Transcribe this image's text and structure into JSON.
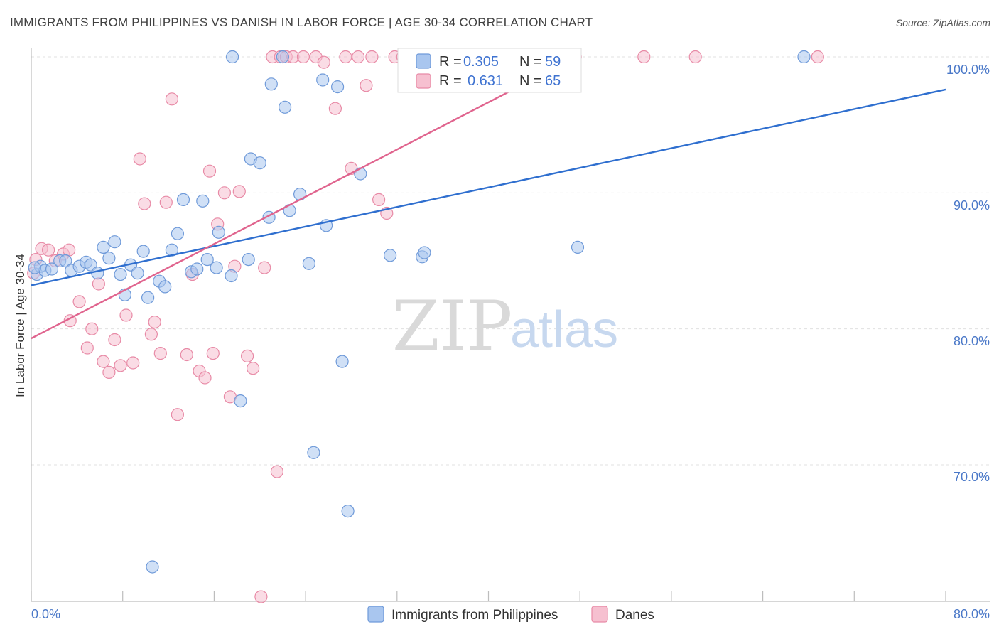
{
  "header": {
    "title": "IMMIGRANTS FROM PHILIPPINES VS DANISH IN LABOR FORCE | AGE 30-34 CORRELATION CHART",
    "source": "Source: ZipAtlas.com"
  },
  "watermark": {
    "zip": "ZIP",
    "atlas": "atlas"
  },
  "colors": {
    "blue_fill": "#a9c6ef",
    "blue_stroke": "#6f9ad9",
    "blue_line": "#2f6fcf",
    "pink_fill": "#f6c0d0",
    "pink_stroke": "#e88aa6",
    "pink_line": "#e0648e",
    "grid": "#e0e0e0",
    "tick_text": "#4a78c8"
  },
  "legend": {
    "r_label": "R =",
    "n_label": "N =",
    "series": [
      {
        "r": "0.305",
        "n": "59"
      },
      {
        "r": "0.631",
        "n": "65"
      }
    ]
  },
  "chart_data": {
    "type": "scatter",
    "title": "IMMIGRANTS FROM PHILIPPINES VS DANISH IN LABOR FORCE | AGE 30-34 CORRELATION CHART",
    "xlabel": "",
    "ylabel": "In Labor Force | Age 30-34",
    "xlim": [
      0,
      80
    ],
    "ylim": [
      60,
      101.5
    ],
    "x_tick_labels": [
      "0.0%",
      "80.0%"
    ],
    "y_ticks": [
      70,
      80,
      90,
      100
    ],
    "y_tick_labels": [
      "70.0%",
      "80.0%",
      "90.0%",
      "100.0%"
    ],
    "grid": true,
    "series": [
      {
        "name": "Immigrants from Philippines",
        "color": "blue",
        "trend": {
          "x": [
            0,
            80
          ],
          "y": [
            83.2,
            97.6
          ]
        },
        "points": [
          [
            0.5,
            84.0
          ],
          [
            0.8,
            84.6
          ],
          [
            1.2,
            84.3
          ],
          [
            1.8,
            84.4
          ],
          [
            2.5,
            85.0
          ],
          [
            3.0,
            85.0
          ],
          [
            3.5,
            84.3
          ],
          [
            4.2,
            84.6
          ],
          [
            4.8,
            84.9
          ],
          [
            5.2,
            84.7
          ],
          [
            5.8,
            84.1
          ],
          [
            6.3,
            86.0
          ],
          [
            6.8,
            85.2
          ],
          [
            7.3,
            86.4
          ],
          [
            7.8,
            84.0
          ],
          [
            8.2,
            82.5
          ],
          [
            8.7,
            84.7
          ],
          [
            9.3,
            84.1
          ],
          [
            9.8,
            85.7
          ],
          [
            10.2,
            82.3
          ],
          [
            11.2,
            83.5
          ],
          [
            11.7,
            83.1
          ],
          [
            12.3,
            85.8
          ],
          [
            12.8,
            87.0
          ],
          [
            13.3,
            89.5
          ],
          [
            14.0,
            84.2
          ],
          [
            14.5,
            84.4
          ],
          [
            15.0,
            89.4
          ],
          [
            15.4,
            85.1
          ],
          [
            16.2,
            84.5
          ],
          [
            16.4,
            87.1
          ],
          [
            17.5,
            83.9
          ],
          [
            17.6,
            100.0
          ],
          [
            18.3,
            74.7
          ],
          [
            19.0,
            85.1
          ],
          [
            19.2,
            92.5
          ],
          [
            20.0,
            92.2
          ],
          [
            20.8,
            88.2
          ],
          [
            21.0,
            98.0
          ],
          [
            22.0,
            100.0
          ],
          [
            22.2,
            96.3
          ],
          [
            22.6,
            88.7
          ],
          [
            23.5,
            89.9
          ],
          [
            24.3,
            84.8
          ],
          [
            24.7,
            70.9
          ],
          [
            25.5,
            98.3
          ],
          [
            25.8,
            87.6
          ],
          [
            26.8,
            97.8
          ],
          [
            27.2,
            77.6
          ],
          [
            27.7,
            66.6
          ],
          [
            28.8,
            91.4
          ],
          [
            31.4,
            85.4
          ],
          [
            33.0,
            100.0
          ],
          [
            34.2,
            85.3
          ],
          [
            34.4,
            85.6
          ],
          [
            47.8,
            86.0
          ],
          [
            67.6,
            100.0
          ],
          [
            10.6,
            62.5
          ],
          [
            0.3,
            84.5
          ]
        ]
      },
      {
        "name": "Danes",
        "color": "pink",
        "trend": {
          "x": [
            0,
            47.7
          ],
          "y": [
            79.3,
            100.0
          ]
        },
        "points": [
          [
            0.4,
            85.1
          ],
          [
            0.9,
            85.9
          ],
          [
            1.5,
            85.8
          ],
          [
            2.1,
            85.0
          ],
          [
            2.8,
            85.5
          ],
          [
            3.4,
            80.6
          ],
          [
            4.2,
            82.0
          ],
          [
            4.9,
            78.6
          ],
          [
            5.3,
            80.0
          ],
          [
            5.9,
            83.3
          ],
          [
            6.3,
            77.6
          ],
          [
            6.8,
            76.8
          ],
          [
            7.3,
            79.2
          ],
          [
            7.8,
            77.3
          ],
          [
            8.3,
            81.0
          ],
          [
            8.9,
            77.5
          ],
          [
            9.5,
            92.5
          ],
          [
            9.9,
            89.2
          ],
          [
            10.5,
            79.6
          ],
          [
            10.8,
            80.5
          ],
          [
            11.3,
            78.2
          ],
          [
            11.8,
            89.3
          ],
          [
            12.3,
            96.9
          ],
          [
            12.8,
            73.7
          ],
          [
            13.6,
            78.1
          ],
          [
            14.1,
            84.0
          ],
          [
            14.7,
            76.9
          ],
          [
            15.2,
            76.4
          ],
          [
            15.6,
            91.6
          ],
          [
            15.9,
            78.2
          ],
          [
            16.3,
            87.7
          ],
          [
            16.9,
            90.0
          ],
          [
            17.4,
            75.0
          ],
          [
            17.8,
            84.6
          ],
          [
            18.2,
            90.1
          ],
          [
            18.9,
            78.0
          ],
          [
            19.4,
            77.1
          ],
          [
            20.1,
            60.3
          ],
          [
            20.4,
            84.5
          ],
          [
            21.1,
            100.0
          ],
          [
            21.5,
            69.5
          ],
          [
            21.8,
            100.0
          ],
          [
            22.3,
            100.0
          ],
          [
            22.9,
            100.0
          ],
          [
            23.8,
            100.0
          ],
          [
            24.9,
            100.0
          ],
          [
            25.6,
            99.6
          ],
          [
            26.6,
            96.2
          ],
          [
            27.5,
            100.0
          ],
          [
            28.0,
            91.8
          ],
          [
            28.6,
            100.0
          ],
          [
            29.3,
            97.9
          ],
          [
            29.8,
            100.0
          ],
          [
            30.4,
            89.5
          ],
          [
            31.1,
            88.5
          ],
          [
            31.8,
            100.0
          ],
          [
            32.5,
            100.0
          ],
          [
            37.5,
            100.0
          ],
          [
            42.4,
            100.0
          ],
          [
            47.6,
            100.0
          ],
          [
            53.6,
            100.0
          ],
          [
            58.1,
            100.0
          ],
          [
            68.8,
            100.0
          ],
          [
            3.3,
            85.8
          ],
          [
            0.2,
            84.1
          ]
        ]
      }
    ]
  },
  "bottom_legend": {
    "items": [
      {
        "label": "Immigrants from Philippines"
      },
      {
        "label": "Danes"
      }
    ]
  }
}
